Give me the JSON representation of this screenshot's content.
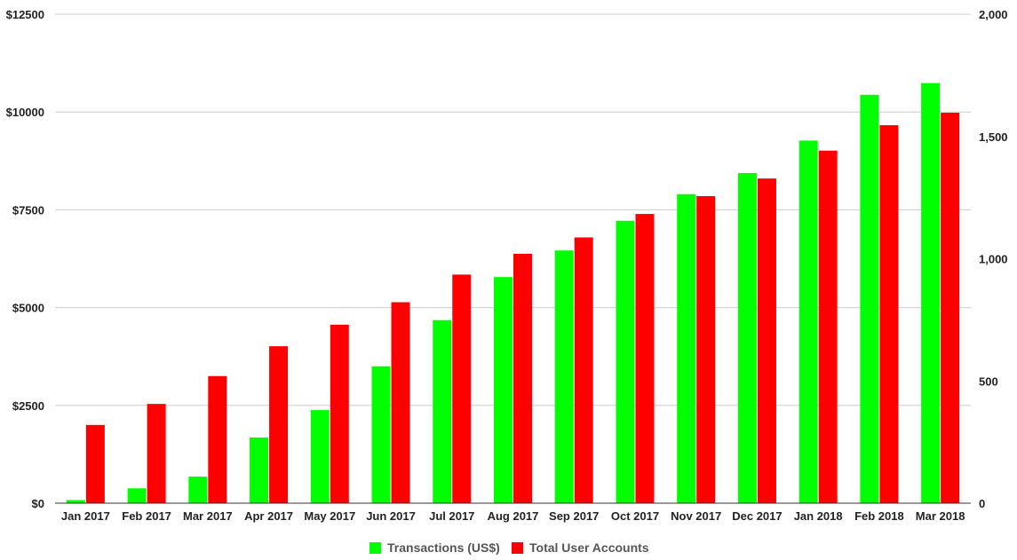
{
  "chart_data": {
    "type": "bar",
    "categories": [
      "Jan 2017",
      "Feb 2017",
      "Mar 2017",
      "Apr 2017",
      "May 2017",
      "Jun 2017",
      "Jul 2017",
      "Aug 2017",
      "Sep 2017",
      "Oct 2017",
      "Nov 2017",
      "Dec 2017",
      "Jan 2018",
      "Feb 2018",
      "Mar 2018"
    ],
    "series": [
      {
        "name": "Transactions (US$)",
        "axis": "left",
        "color": "#00ff00",
        "values": [
          80,
          380,
          680,
          1680,
          2380,
          3500,
          4680,
          5780,
          6460,
          7220,
          7900,
          8440,
          9270,
          10440,
          10740
        ]
      },
      {
        "name": "Total User Accounts",
        "axis": "right",
        "color": "#ff0000",
        "values": [
          320,
          406,
          520,
          642,
          730,
          822,
          935,
          1020,
          1087,
          1183,
          1256,
          1328,
          1442,
          1546,
          1597
        ]
      }
    ],
    "left_axis": {
      "ylim": [
        0,
        12500
      ],
      "ticks": [
        0,
        2500,
        5000,
        7500,
        10000,
        12500
      ],
      "tick_labels": [
        "$0",
        "$2500",
        "$5000",
        "$7500",
        "$10000",
        "$12500"
      ]
    },
    "right_axis": {
      "ylim": [
        0,
        2000
      ],
      "ticks": [
        0,
        500,
        1000,
        1500,
        2000
      ],
      "tick_labels": [
        "0",
        "500",
        "1,000",
        "1,500",
        "2,000"
      ]
    },
    "grid": true,
    "legend_position": "bottom"
  }
}
